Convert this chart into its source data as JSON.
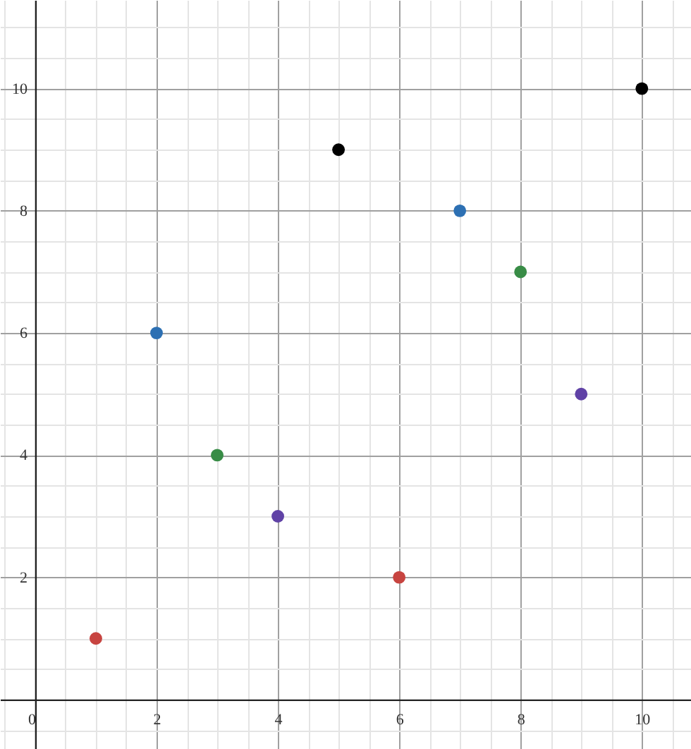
{
  "chart_data": {
    "type": "scatter",
    "x": [
      1,
      2,
      3,
      4,
      5,
      6,
      7,
      8,
      9,
      10
    ],
    "values": [
      1,
      6,
      4,
      3,
      9,
      2,
      8,
      7,
      5,
      10
    ],
    "colors": [
      "#c74440",
      "#2d70b3",
      "#388c46",
      "#6042a6",
      "#000000",
      "#c74440",
      "#2d70b3",
      "#388c46",
      "#6042a6",
      "#000000"
    ],
    "xlim": [
      -0.58,
      10.81
    ],
    "ylim": [
      -0.81,
      11.45
    ],
    "xticks": [
      0,
      2,
      4,
      6,
      8,
      10
    ],
    "yticks": [
      2,
      4,
      6,
      8,
      10
    ],
    "grid": true,
    "marker": "circle"
  }
}
